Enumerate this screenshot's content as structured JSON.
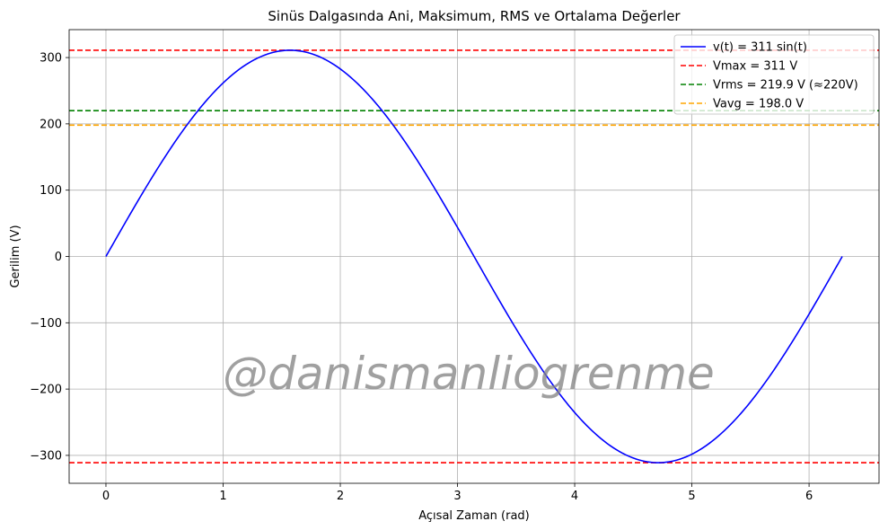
{
  "chart_data": {
    "type": "line",
    "title": "Sinüs Dalgasında Ani, Maksimum, RMS ve Ortalama Değerler",
    "xlabel": "Açısal Zaman (rad)",
    "ylabel": "Gerilim (V)",
    "xlim": [
      -0.314,
      6.597
    ],
    "ylim": [
      -342.1,
      342.1
    ],
    "xticks": [
      0,
      1,
      2,
      3,
      4,
      5,
      6
    ],
    "xtick_labels": [
      "0",
      "1",
      "2",
      "3",
      "4",
      "5",
      "6"
    ],
    "yticks": [
      -300,
      -200,
      -100,
      0,
      100,
      200,
      300
    ],
    "ytick_labels": [
      "−300",
      "−200",
      "−100",
      "0",
      "100",
      "200",
      "300"
    ],
    "grid": true,
    "legend_position": "top-right",
    "series": [
      {
        "name": "v(t) = 311 sin(t)",
        "kind": "curve",
        "amplitude": 311,
        "x_range": [
          0,
          6.2832
        ],
        "color": "#0000ff",
        "style": "solid"
      },
      {
        "name": "Vmax = 311 V",
        "kind": "hline",
        "y": [
          311,
          -311
        ],
        "color": "#ff0000",
        "style": "dashed"
      },
      {
        "name": "Vrms = 219.9 V (≈220V)",
        "kind": "hline",
        "y": [
          219.9
        ],
        "color": "#008000",
        "style": "dashed"
      },
      {
        "name": "Vavg = 198.0 V",
        "kind": "hline",
        "y": [
          198.0
        ],
        "color": "#ffa500",
        "style": "dashed"
      }
    ],
    "watermark": "@danismanliogrenme"
  }
}
